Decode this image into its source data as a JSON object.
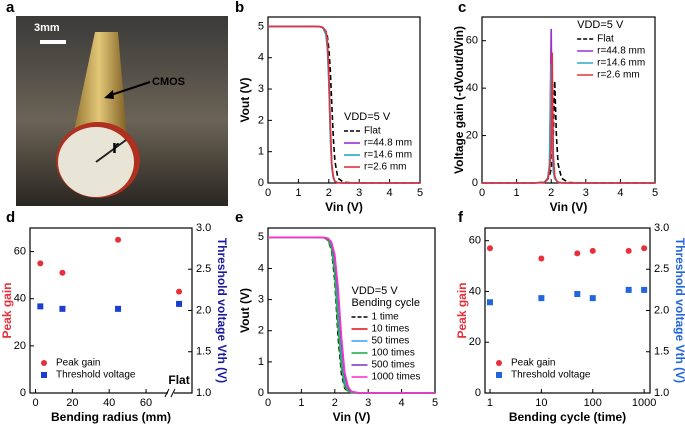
{
  "image_panel": {
    "panel": "a",
    "scale_bar": "3mm",
    "pointer": "CMOS",
    "radius": "r"
  },
  "chart_data": [
    {
      "type": "line",
      "panel": "b",
      "xlabel": "Vin (V)",
      "ylabel": "Vout (V)",
      "xlim": [
        0,
        5
      ],
      "ylim": [
        0,
        5.3
      ],
      "xticks": [
        0,
        1,
        2,
        3,
        4,
        5
      ],
      "yticks": [
        0,
        1,
        2,
        3,
        4,
        5
      ],
      "legend": "lower-right",
      "legend_title": [
        "VDD=5 V"
      ],
      "x": [
        0,
        1,
        1.5,
        1.7,
        1.8,
        1.9,
        1.95,
        2.0,
        2.05,
        2.1,
        2.15,
        2.2,
        2.3,
        2.5,
        3,
        4,
        5
      ],
      "series": [
        {
          "name": "Flat",
          "color": "#000000",
          "dash": true,
          "values": [
            5,
            5,
            5,
            4.99,
            4.97,
            4.85,
            4.7,
            4.3,
            3.6,
            2.5,
            1.4,
            0.7,
            0.15,
            0.02,
            0,
            0,
            0
          ]
        },
        {
          "name": "r=44.8 mm",
          "color": "#9b30d0",
          "values": [
            5,
            5,
            5,
            4.99,
            4.97,
            4.8,
            4.5,
            3.4,
            1.6,
            0.5,
            0.15,
            0.05,
            0.01,
            0,
            0,
            0,
            0
          ]
        },
        {
          "name": "r=14.6 mm",
          "color": "#2aa9c9",
          "values": [
            5,
            5,
            5,
            4.99,
            4.96,
            4.75,
            4.3,
            3.2,
            1.5,
            0.5,
            0.15,
            0.05,
            0.01,
            0,
            0,
            0,
            0
          ]
        },
        {
          "name": "r=2.6 mm",
          "color": "#e8303a",
          "values": [
            5,
            5,
            5,
            4.99,
            4.97,
            4.85,
            4.6,
            3.6,
            1.9,
            0.6,
            0.2,
            0.05,
            0.01,
            0,
            0,
            0,
            0
          ]
        }
      ]
    },
    {
      "type": "line",
      "panel": "c",
      "xlabel": "Vin (V)",
      "ylabel": "Voltage gain (-dVout/dVin)",
      "xlim": [
        0,
        5
      ],
      "ylim": [
        0,
        70
      ],
      "xticks": [
        0,
        1,
        2,
        3,
        4,
        5
      ],
      "yticks": [
        0,
        20,
        40,
        60
      ],
      "legend": "upper-right",
      "legend_title": [
        "VDD=5 V"
      ],
      "x": [
        0,
        1,
        1.5,
        1.8,
        1.9,
        1.95,
        2.0,
        2.03,
        2.06,
        2.1,
        2.15,
        2.2,
        2.3,
        2.5,
        3,
        5
      ],
      "series": [
        {
          "name": "Flat",
          "color": "#000000",
          "dash": true,
          "values": [
            0,
            0,
            0,
            0.3,
            1.5,
            3,
            6,
            10,
            20,
            43,
            20,
            8,
            2,
            0.2,
            0,
            0
          ]
        },
        {
          "name": "r=44.8 mm",
          "color": "#9b30d0",
          "values": [
            0,
            0,
            0,
            0.3,
            2,
            6,
            65,
            20,
            6,
            2,
            1,
            0.3,
            0.1,
            0,
            0,
            0
          ]
        },
        {
          "name": "r=14.6 mm",
          "color": "#2aa9c9",
          "values": [
            0,
            0,
            0,
            0.3,
            2,
            8,
            50,
            20,
            5,
            2,
            1,
            0.3,
            0.1,
            0,
            0,
            0
          ]
        },
        {
          "name": "r=2.6 mm",
          "color": "#e8303a",
          "values": [
            0,
            0,
            0,
            0.3,
            1.5,
            5,
            15,
            55,
            12,
            3,
            1,
            0.3,
            0.1,
            0,
            0,
            0
          ]
        }
      ]
    },
    {
      "type": "scatter",
      "panel": "d",
      "xlabel": "Bending radius (mm)",
      "ylabel": "Peak gain",
      "y2label": "Threshold voltage Vth (V)",
      "ylabel_color": "#e8303a",
      "y2label_color": "#1a1aa0",
      "xlim": [
        -3,
        70
      ],
      "ylim": [
        0,
        70
      ],
      "y2lim": [
        1.0,
        3.0
      ],
      "xticks": [
        0,
        20,
        40,
        60
      ],
      "yticks": [
        0,
        20,
        40,
        60
      ],
      "y2ticks": [
        {
          "value": 1,
          "label": "1.0"
        },
        1.5,
        {
          "value": 2,
          "label": "2.0"
        },
        2.5,
        {
          "value": 3,
          "label": "3.0"
        }
      ],
      "legend": "lower-left",
      "x": [
        2.6,
        14.6,
        44.8,
        "Flat"
      ],
      "series": [
        {
          "name": "Peak gain",
          "color": "#e8303a",
          "marker": "circle",
          "values": [
            55,
            51,
            65,
            43
          ]
        },
        {
          "name": "Threshold voltage",
          "color": "#1a3fd0",
          "marker": "square",
          "axis": "y2",
          "values": [
            2.05,
            2.02,
            2.02,
            2.08
          ]
        }
      ]
    },
    {
      "type": "line",
      "panel": "e",
      "xlabel": "Vin (V)",
      "ylabel": "Vout (V)",
      "xlim": [
        0,
        5
      ],
      "ylim": [
        0,
        5.3
      ],
      "xticks": [
        0,
        1,
        2,
        3,
        4,
        5
      ],
      "yticks": [
        0,
        1,
        2,
        3,
        4,
        5
      ],
      "legend": "lower-right",
      "legend_title": [
        "VDD=5 V",
        "Bending cycle"
      ],
      "x": [
        0,
        1,
        1.5,
        1.7,
        1.8,
        1.9,
        2.0,
        2.1,
        2.2,
        2.3,
        2.4,
        2.5,
        2.7,
        3,
        4,
        5
      ],
      "series": [
        {
          "name": "1 time",
          "color": "#000000",
          "dash": true,
          "values": [
            5,
            5,
            5,
            4.98,
            4.9,
            4.6,
            3.6,
            1.8,
            0.6,
            0.15,
            0.04,
            0.01,
            0,
            0,
            0,
            0
          ]
        },
        {
          "name": "10 times",
          "color": "#e41a1c",
          "values": [
            5,
            5,
            5,
            4.99,
            4.93,
            4.72,
            4.0,
            2.5,
            1.0,
            0.3,
            0.08,
            0.02,
            0,
            0,
            0,
            0
          ]
        },
        {
          "name": "50 times",
          "color": "#3fa9f5",
          "values": [
            5,
            5,
            5,
            4.99,
            4.95,
            4.78,
            4.2,
            2.9,
            1.3,
            0.4,
            0.1,
            0.03,
            0,
            0,
            0,
            0
          ]
        },
        {
          "name": "100 times",
          "color": "#22b14c",
          "values": [
            5,
            5,
            5,
            4.98,
            4.91,
            4.65,
            3.8,
            2.1,
            0.8,
            0.2,
            0.05,
            0.01,
            0,
            0,
            0,
            0
          ]
        },
        {
          "name": "500 times",
          "color": "#7f3fbf",
          "values": [
            5,
            5,
            5,
            4.99,
            4.96,
            4.82,
            4.35,
            3.2,
            1.6,
            0.55,
            0.15,
            0.04,
            0,
            0,
            0,
            0
          ]
        },
        {
          "name": "1000 times",
          "color": "#ff33cc",
          "values": [
            5,
            5,
            5,
            4.99,
            4.97,
            4.85,
            4.45,
            3.4,
            1.8,
            0.65,
            0.2,
            0.05,
            0.01,
            0,
            0,
            0
          ]
        }
      ]
    },
    {
      "type": "scatter",
      "panel": "f",
      "xlabel": "Bending cycle (time)",
      "ylabel": "Peak gain",
      "y2label": "Threshold voltage Vth (V)",
      "ylabel_color": "#e8303a",
      "y2label_color": "#2266dd",
      "log_x": true,
      "xlim": [
        0.8,
        1300
      ],
      "ylim": [
        0,
        65
      ],
      "y2lim": [
        1.0,
        3.0
      ],
      "xticks": [
        1,
        10,
        100,
        1000
      ],
      "yticks": [
        0,
        20,
        40,
        60
      ],
      "y2ticks": [
        {
          "value": 1,
          "label": "1.0"
        },
        1.5,
        {
          "value": 2,
          "label": "2.0"
        },
        2.5,
        {
          "value": 3,
          "label": "3.0"
        }
      ],
      "legend": "lower-left",
      "x": [
        1,
        10,
        50,
        100,
        500,
        1000
      ],
      "series": [
        {
          "name": "Peak gain",
          "color": "#e8303a",
          "marker": "circle",
          "values": [
            57,
            53,
            55,
            56,
            56,
            57
          ]
        },
        {
          "name": "Threshold voltage",
          "color": "#2266dd",
          "marker": "square",
          "axis": "y2",
          "values": [
            2.1,
            2.15,
            2.2,
            2.15,
            2.25,
            2.25
          ]
        }
      ]
    }
  ]
}
